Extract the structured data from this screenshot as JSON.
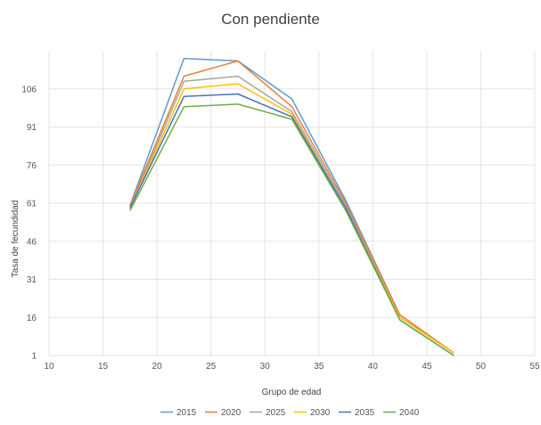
{
  "chart_data": {
    "type": "line",
    "title": "Con pendiente",
    "xlabel": "Grupo de edad",
    "ylabel": "Tasa de fecundidad",
    "xlim": [
      10,
      55
    ],
    "ylim": [
      1,
      121
    ],
    "x_ticks": [
      10,
      15,
      20,
      25,
      30,
      35,
      40,
      45,
      50,
      55
    ],
    "y_ticks": [
      1,
      16,
      31,
      46,
      61,
      76,
      91,
      106
    ],
    "grid": true,
    "legend_position": "bottom",
    "x": [
      17.5,
      22.5,
      27.5,
      32.5,
      37.5,
      42.5,
      47.5
    ],
    "series": [
      {
        "name": "2015",
        "color": "#5b9bd5",
        "values": [
          60,
          118,
          117,
          102,
          62,
          17,
          2
        ]
      },
      {
        "name": "2020",
        "color": "#ed7d31",
        "values": [
          60,
          111,
          117,
          99,
          61,
          17,
          2
        ]
      },
      {
        "name": "2025",
        "color": "#a5a5a5",
        "values": [
          59,
          109,
          111,
          97,
          60,
          16,
          2
        ]
      },
      {
        "name": "2030",
        "color": "#ffc000",
        "values": [
          59,
          106,
          108,
          96,
          59,
          16,
          2
        ]
      },
      {
        "name": "2035",
        "color": "#4472c4",
        "values": [
          59,
          103,
          104,
          95,
          59,
          15,
          1
        ]
      },
      {
        "name": "2040",
        "color": "#70ad47",
        "values": [
          58,
          99,
          100,
          94,
          58,
          15,
          1
        ]
      }
    ]
  }
}
